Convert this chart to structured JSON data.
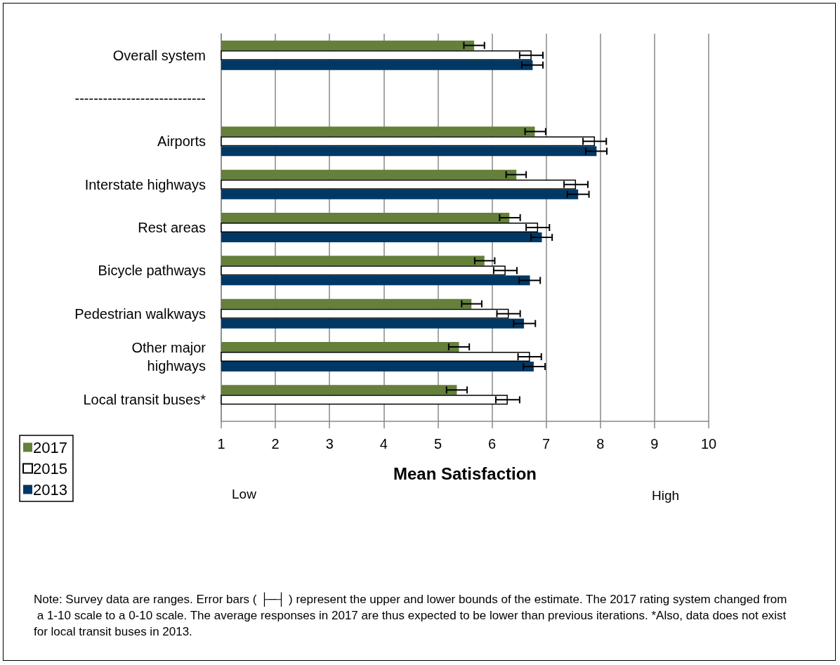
{
  "chart_data": {
    "type": "bar",
    "orientation": "horizontal",
    "xlabel": "Mean Satisfaction",
    "categories": [
      "Overall system",
      "----------------------------",
      "Airports",
      "Interstate highways",
      "Rest areas",
      "Bicycle pathways",
      "Pedestrian walkways",
      "Other major\nhighways",
      "Local transit buses*"
    ],
    "series": [
      {
        "name": "2017",
        "color": "#64803a",
        "values": [
          5.67,
          null,
          6.79,
          6.45,
          6.32,
          5.86,
          5.62,
          5.39,
          5.35
        ],
        "errors": [
          [
            5.48,
            5.86
          ],
          null,
          [
            6.61,
            6.99
          ],
          [
            6.26,
            6.63
          ],
          [
            6.14,
            6.52
          ],
          [
            5.68,
            6.05
          ],
          [
            5.44,
            5.81
          ],
          [
            5.2,
            5.58
          ],
          [
            5.16,
            5.54
          ]
        ]
      },
      {
        "name": "2015",
        "color": "#ffffff",
        "values": [
          6.73,
          null,
          7.9,
          7.55,
          6.85,
          6.25,
          6.31,
          6.7,
          6.29
        ],
        "errors": [
          [
            6.51,
            6.94
          ],
          null,
          [
            7.68,
            8.11
          ],
          [
            7.33,
            7.77
          ],
          [
            6.63,
            7.06
          ],
          [
            6.03,
            6.46
          ],
          [
            6.09,
            6.52
          ],
          [
            6.48,
            6.91
          ],
          [
            6.07,
            6.51
          ]
        ]
      },
      {
        "name": "2013",
        "color": "#003865",
        "values": [
          6.75,
          null,
          7.93,
          7.59,
          6.92,
          6.7,
          6.59,
          6.77,
          null
        ],
        "errors": [
          [
            6.55,
            6.94
          ],
          null,
          [
            7.73,
            8.12
          ],
          [
            7.39,
            7.79
          ],
          [
            6.72,
            7.11
          ],
          [
            6.5,
            6.89
          ],
          [
            6.4,
            6.8
          ],
          [
            6.58,
            6.98
          ],
          null
        ]
      }
    ],
    "xlim": [
      1,
      10
    ],
    "xticks": [
      1,
      2,
      3,
      4,
      5,
      6,
      7,
      8,
      9,
      10
    ],
    "grid": "x",
    "legend": "bottom left",
    "annotations": [
      "Low",
      "High",
      "Note: Survey data are ranges. Error bars ( ├─┤ ) represent the upper and lower bounds of the estimate. The 2017 rating system changed from a 1-10 scale to a 0-10 scale. The average responses in 2017 are thus expected to be lower than previous iterations. *Also, data does not exist for local transit buses in 2013."
    ]
  }
}
